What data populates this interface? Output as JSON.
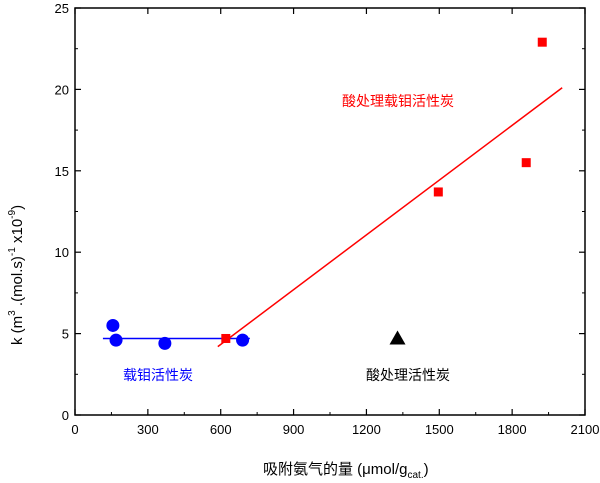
{
  "chart_data": {
    "type": "scatter",
    "xlabel": "吸附氨气的量 (μmol/g",
    "xlabel_sub": "cat.",
    "xlabel_close": ")",
    "ylabel_parts": [
      "k (m",
      "3",
      " .(mol.s)",
      "-1",
      " x10",
      "-9",
      ")"
    ],
    "xlim": [
      0,
      2100
    ],
    "ylim": [
      0,
      25
    ],
    "xticks": [
      "0",
      "300",
      "600",
      "900",
      "1200",
      "1500",
      "1800",
      "2100"
    ],
    "yticks": [
      "0",
      "5",
      "10",
      "15",
      "20",
      "25"
    ],
    "grid": false,
    "series": [
      {
        "name": "载钼活性炭",
        "color": "#0000ff",
        "marker": "circle",
        "x": [
          156,
          169,
          370,
          690
        ],
        "y": [
          5.5,
          4.6,
          4.4,
          4.6
        ],
        "fit_line": [
          [
            115,
            4.7
          ],
          [
            720,
            4.7
          ]
        ]
      },
      {
        "name": "酸处理载钼活性炭",
        "color": "#ff0000",
        "marker": "square",
        "x": [
          621,
          1496,
          1858,
          1924
        ],
        "y": [
          4.7,
          13.7,
          15.5,
          22.9
        ],
        "fit_line": [
          [
            588,
            4.2
          ],
          [
            2006,
            20.1
          ]
        ]
      },
      {
        "name": "酸处理活性炭",
        "color": "#000000",
        "marker": "triangle",
        "x": [
          1328
        ],
        "y": [
          4.7
        ]
      }
    ]
  }
}
